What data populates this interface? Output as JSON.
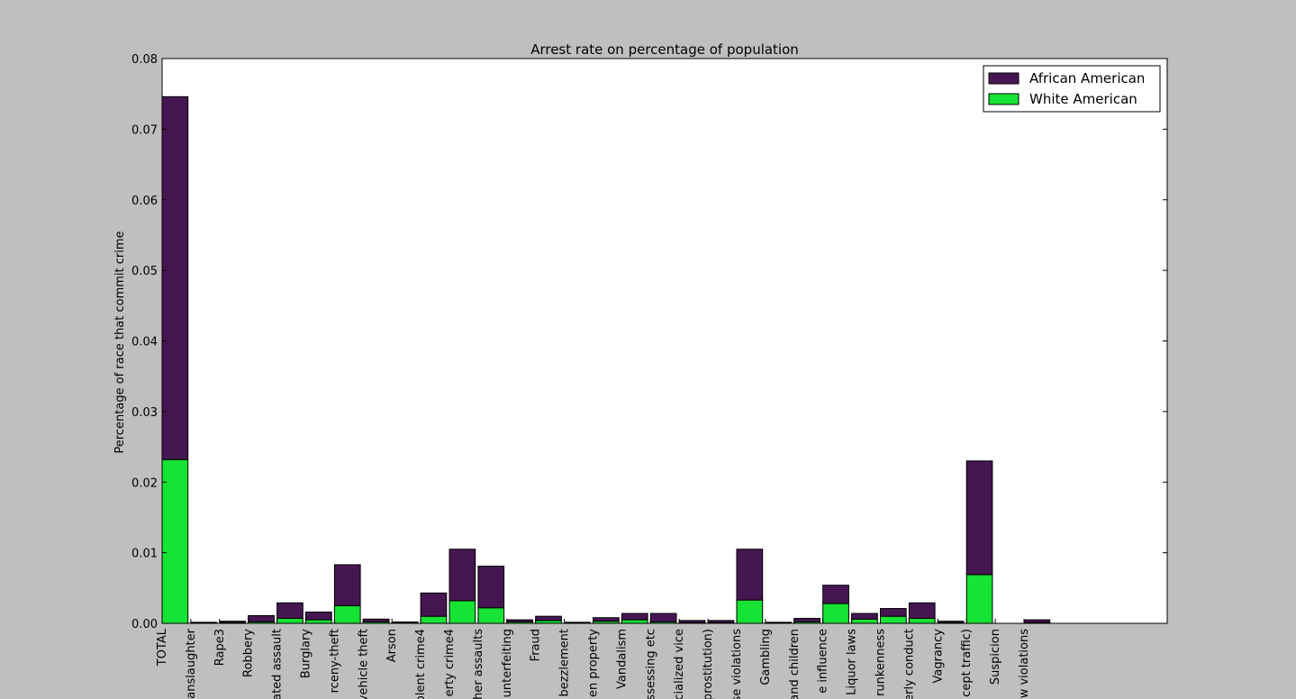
{
  "chart_data": {
    "type": "bar",
    "stacked": true,
    "title": "Arrest rate on percentage of population",
    "xlabel": "",
    "ylabel": "Percentage of race that commit crime",
    "ylim": [
      0,
      0.08
    ],
    "yticks": [
      "0.00",
      "0.01",
      "0.02",
      "0.03",
      "0.04",
      "0.05",
      "0.06",
      "0.07",
      "0.08"
    ],
    "ytick_values": [
      0,
      0.01,
      0.02,
      0.03,
      0.04,
      0.05,
      0.06,
      0.07,
      0.08
    ],
    "grid": false,
    "legend_position": "top-right",
    "categories": [
      "TOTAL",
      "anslaughter",
      "Rape3",
      "Robbery",
      "ated assault",
      "Burglary",
      "rceny-theft",
      "vehicle theft",
      "Arson",
      "olent crime4",
      "erty crime4",
      "her assaults",
      "unterfeiting",
      "Fraud",
      "bezzlement",
      "en property",
      "Vandalism",
      "ssessing etc",
      "cialized vice",
      "prostitution)",
      "se violations",
      "Gambling",
      "and children",
      "e influence",
      "Liquor laws",
      "runkenness",
      "erly conduct",
      "Vagrancy",
      "cept traffic)",
      "Suspicion",
      "w violations"
    ],
    "series": [
      {
        "name": "White American",
        "color": "#17e334",
        "values": [
          0.0232,
          5e-05,
          0.0001,
          0.0002,
          0.0007,
          0.0005,
          0.0025,
          0.0002,
          0.0001,
          0.001,
          0.0032,
          0.0022,
          0.0002,
          0.0004,
          5e-05,
          0.0003,
          0.0005,
          0.0002,
          0.0001,
          0.0001,
          0.0033,
          5e-05,
          0.0002,
          0.0028,
          0.0006,
          0.001,
          0.0007,
          0.0001,
          0.0069,
          0.0,
          0.0001
        ]
      },
      {
        "name": "African American",
        "color": "#461652",
        "values": [
          0.0514,
          0.0001,
          0.0002,
          0.0009,
          0.0022,
          0.0011,
          0.0058,
          0.0004,
          0.0001,
          0.0033,
          0.0073,
          0.0059,
          0.0003,
          0.0006,
          0.0001,
          0.0005,
          0.0009,
          0.0012,
          0.0003,
          0.0003,
          0.0072,
          0.0001,
          0.0005,
          0.0026,
          0.0008,
          0.0011,
          0.0022,
          0.0002,
          0.0161,
          0.0,
          0.0004
        ]
      }
    ]
  }
}
